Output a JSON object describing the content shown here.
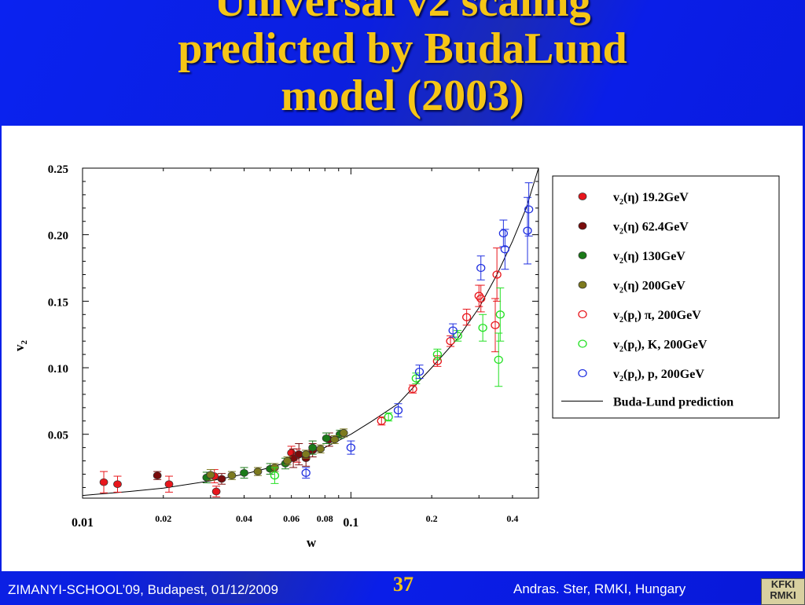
{
  "slide": {
    "title_lines": [
      "Universal v2 scaling",
      "predicted by BudaLund",
      "model (2003)"
    ],
    "footer_left": "ZIMANYI-SCHOOL’09, Budapest, 01/12/2009",
    "page_number": "37",
    "footer_right": "Andras. Ster,  RMKI, Hungary",
    "logo_text": [
      "KFKI",
      "RMKI"
    ]
  },
  "chart_data": {
    "type": "scatter",
    "xlabel": "w",
    "ylabel": "v2",
    "x_scale": "log",
    "xlim": [
      0.01,
      0.5
    ],
    "ylim": [
      0.002,
      0.25
    ],
    "x_ticks": [
      {
        "value": 0.01,
        "label": "0.01"
      },
      {
        "value": 0.02,
        "label": "0.02"
      },
      {
        "value": 0.04,
        "label": "0.04"
      },
      {
        "value": 0.06,
        "label": "0.06"
      },
      {
        "value": 0.08,
        "label": "0.08"
      },
      {
        "value": 0.1,
        "label": "0.1"
      },
      {
        "value": 0.2,
        "label": "0.2"
      },
      {
        "value": 0.4,
        "label": "0.4"
      }
    ],
    "y_ticks": [
      {
        "value": 0.05,
        "label": "0.05"
      },
      {
        "value": 0.1,
        "label": "0.10"
      },
      {
        "value": 0.15,
        "label": "0.15"
      },
      {
        "value": 0.2,
        "label": "0.20"
      },
      {
        "value": 0.25,
        "label": "0.25"
      }
    ],
    "legend_position": "right",
    "series": [
      {
        "name": "v2(η) 19.2GeV",
        "label_main": "v",
        "label_sub": "2",
        "label_rest": "(η) 19.2GeV",
        "marker": "filled",
        "color": "#e8161c",
        "points": [
          [
            0.012,
            0.014,
            0.008
          ],
          [
            0.0135,
            0.0125,
            0.006
          ],
          [
            0.021,
            0.0125,
            0.006
          ],
          [
            0.031,
            0.0185,
            0.005
          ],
          [
            0.0315,
            0.007,
            0.004
          ],
          [
            0.06,
            0.036,
            0.005
          ],
          [
            0.063,
            0.034,
            0.005
          ]
        ]
      },
      {
        "name": "v2(η) 62.4GeV",
        "label_main": "v",
        "label_sub": "2",
        "label_rest": "(η) 62.4GeV",
        "marker": "filled",
        "color": "#7a0c0c",
        "points": [
          [
            0.019,
            0.019,
            0.003
          ],
          [
            0.033,
            0.0165,
            0.004
          ],
          [
            0.061,
            0.032,
            0.007
          ],
          [
            0.064,
            0.035,
            0.008
          ],
          [
            0.068,
            0.032,
            0.006
          ],
          [
            0.072,
            0.038,
            0.005
          ],
          [
            0.083,
            0.046,
            0.005
          ]
        ]
      },
      {
        "name": "v2(η) 130GeV",
        "label_main": "v",
        "label_sub": "2",
        "label_rest": "(η) 130GeV",
        "marker": "filled",
        "color": "#1a7a18",
        "points": [
          [
            0.029,
            0.0175,
            0.004
          ],
          [
            0.04,
            0.021,
            0.004
          ],
          [
            0.05,
            0.024,
            0.004
          ],
          [
            0.057,
            0.028,
            0.004
          ],
          [
            0.072,
            0.04,
            0.005
          ],
          [
            0.081,
            0.047,
            0.004
          ],
          [
            0.091,
            0.05,
            0.003
          ]
        ]
      },
      {
        "name": "v2(η) 200GeV",
        "label_main": "v",
        "label_sub": "2",
        "label_rest": "(η) 200GeV",
        "marker": "filled",
        "color": "#7d7a1e",
        "points": [
          [
            0.03,
            0.0195,
            0.004
          ],
          [
            0.036,
            0.019,
            0.003
          ],
          [
            0.045,
            0.022,
            0.003
          ],
          [
            0.052,
            0.025,
            0.003
          ],
          [
            0.058,
            0.03,
            0.003
          ],
          [
            0.068,
            0.035,
            0.003
          ],
          [
            0.077,
            0.039,
            0.003
          ],
          [
            0.087,
            0.046,
            0.003
          ],
          [
            0.094,
            0.051,
            0.003
          ]
        ]
      },
      {
        "name": "v2(pt) π, 200GeV",
        "label_main": "v",
        "label_sub": "2",
        "label_rest": "(p",
        "label_sub2": "t",
        "label_rest2": ") π, 200GeV",
        "marker": "open",
        "color": "#e8161c",
        "points": [
          [
            0.13,
            0.06,
            0.003
          ],
          [
            0.17,
            0.084,
            0.003
          ],
          [
            0.21,
            0.105,
            0.004
          ],
          [
            0.235,
            0.12,
            0.004
          ],
          [
            0.27,
            0.138,
            0.006
          ],
          [
            0.3,
            0.154,
            0.008
          ],
          [
            0.305,
            0.152,
            0.01
          ],
          [
            0.35,
            0.17,
            0.02
          ],
          [
            0.345,
            0.132,
            0.02
          ]
        ]
      },
      {
        "name": "v2(pt), K, 200GeV",
        "label_main": "v",
        "label_sub": "2",
        "label_rest": "(p",
        "label_sub2": "t",
        "label_rest2": "), K, 200GeV",
        "marker": "open",
        "color": "#22e022",
        "points": [
          [
            0.052,
            0.019,
            0.006
          ],
          [
            0.138,
            0.063,
            0.003
          ],
          [
            0.175,
            0.092,
            0.004
          ],
          [
            0.21,
            0.11,
            0.004
          ],
          [
            0.25,
            0.124,
            0.004
          ],
          [
            0.31,
            0.13,
            0.01
          ],
          [
            0.36,
            0.14,
            0.02
          ],
          [
            0.355,
            0.106,
            0.02
          ]
        ]
      },
      {
        "name": "v2(pt), p, 200GeV",
        "label_main": "v",
        "label_sub": "2",
        "label_rest": "(p",
        "label_sub2": "t",
        "label_rest2": "), p, 200GeV",
        "marker": "open",
        "color": "#2030e0",
        "points": [
          [
            0.068,
            0.021,
            0.004
          ],
          [
            0.1,
            0.04,
            0.005
          ],
          [
            0.15,
            0.068,
            0.005
          ],
          [
            0.18,
            0.097,
            0.005
          ],
          [
            0.24,
            0.128,
            0.005
          ],
          [
            0.305,
            0.175,
            0.009
          ],
          [
            0.37,
            0.201,
            0.01
          ],
          [
            0.375,
            0.189,
            0.015
          ],
          [
            0.46,
            0.219,
            0.02
          ],
          [
            0.455,
            0.203,
            0.025
          ]
        ]
      }
    ],
    "curve": {
      "name": "Buda-Lund prediction",
      "points": [
        [
          0.01,
          0.004
        ],
        [
          0.015,
          0.007
        ],
        [
          0.02,
          0.0095
        ],
        [
          0.03,
          0.015
        ],
        [
          0.04,
          0.02
        ],
        [
          0.05,
          0.025
        ],
        [
          0.06,
          0.03
        ],
        [
          0.07,
          0.035
        ],
        [
          0.08,
          0.04
        ],
        [
          0.1,
          0.05
        ],
        [
          0.12,
          0.06
        ],
        [
          0.15,
          0.073
        ],
        [
          0.2,
          0.1
        ],
        [
          0.25,
          0.122
        ],
        [
          0.3,
          0.145
        ],
        [
          0.35,
          0.17
        ],
        [
          0.4,
          0.195
        ],
        [
          0.45,
          0.22
        ],
        [
          0.5,
          0.25
        ]
      ]
    }
  }
}
